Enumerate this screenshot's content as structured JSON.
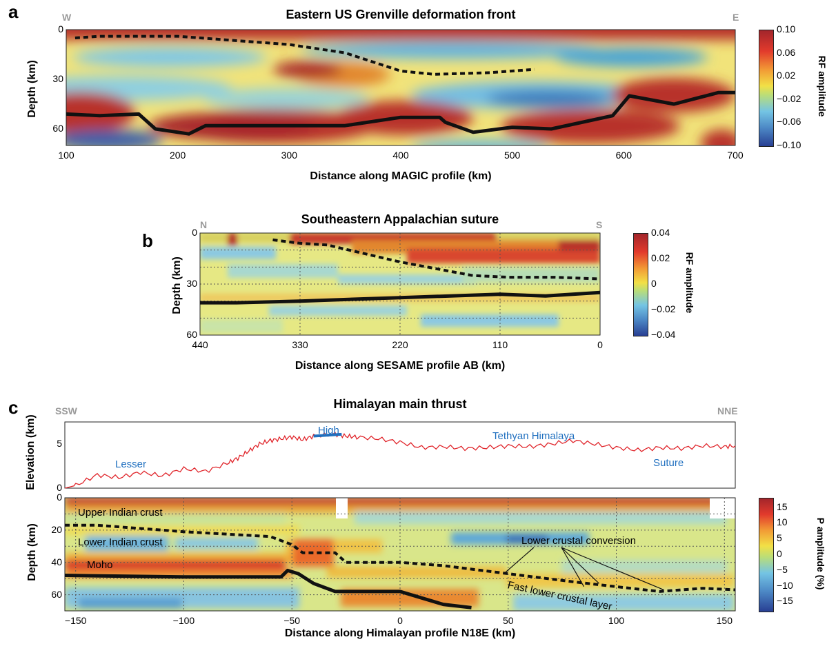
{
  "panels": [
    {
      "letter": "a",
      "title": "Eastern US Grenville deformation front",
      "dir_left": "W",
      "dir_right": "E",
      "xlabel": "Distance along MAGIC profile (km)",
      "ylabel": "Depth (km)",
      "colorbar_label": "RF amplitude",
      "colorbar_ticks": [
        "0.10",
        "0.06",
        "0.02",
        "−0.02",
        "−0.06",
        "−0.10"
      ]
    },
    {
      "letter": "b",
      "title": "Southeastern Appalachian suture",
      "dir_left": "N",
      "dir_right": "S",
      "xlabel": "Distance along SESAME profile AB (km)",
      "ylabel": "Depth (km)",
      "colorbar_label": "RF amplitude",
      "colorbar_ticks": [
        "0.04",
        "0.02",
        "0",
        "−0.02",
        "−0.04"
      ]
    },
    {
      "letter": "c",
      "title": "Himalayan main thrust",
      "dir_left": "SSW",
      "dir_right": "NNE",
      "xlabel": "Distance along Himalayan profile N18E (km)",
      "ylabel": "Depth (km)",
      "elev_ylabel": "Elevation (km)",
      "colorbar_label": "P amplitude (%)",
      "colorbar_ticks": [
        "15",
        "10",
        "5",
        "0",
        "−5",
        "−10",
        "−15"
      ],
      "elev_labels": {
        "lesser": "Lesser",
        "high": "High",
        "tethyan": "Tethyan Himalaya",
        "suture": "Suture"
      },
      "annotations": {
        "upper": "Upper Indian crust",
        "lower": "Lower  Indian crust",
        "moho": "Moho",
        "lcc": "Lower crustal conversion",
        "fast": "Fast lower crustal layer"
      }
    }
  ],
  "chart_data": [
    {
      "type": "heatmap",
      "title": "Eastern US Grenville deformation front",
      "xlabel": "Distance along MAGIC profile (km)",
      "ylabel": "Depth (km)",
      "xlim": [
        100,
        700
      ],
      "ylim": [
        0,
        70
      ],
      "y_inverted": true,
      "x_ticks": [
        100,
        200,
        300,
        400,
        500,
        600,
        700
      ],
      "y_ticks": [
        0,
        30,
        60
      ],
      "colorbar": {
        "label": "RF amplitude",
        "min": -0.1,
        "max": 0.1,
        "ticks": [
          0.1,
          0.06,
          0.02,
          -0.02,
          -0.06,
          -0.1
        ]
      },
      "lines": [
        {
          "style": "dashed",
          "x": [
            108,
            130,
            200,
            300,
            350,
            400,
            430,
            480,
            520
          ],
          "y": [
            5,
            4,
            4,
            9,
            14,
            25,
            27,
            26,
            24
          ]
        },
        {
          "style": "solid",
          "x": [
            100,
            130,
            165,
            180,
            210,
            225,
            300,
            350,
            400,
            435,
            440,
            465,
            500,
            535,
            590,
            605,
            645,
            685,
            700
          ],
          "y": [
            51,
            52,
            51,
            60,
            63,
            58,
            58,
            58,
            53,
            53,
            56,
            62,
            59,
            60,
            52,
            40,
            45,
            38,
            38
          ]
        }
      ]
    },
    {
      "type": "heatmap",
      "title": "Southeastern Appalachian suture",
      "xlabel": "Distance along SESAME profile AB (km)",
      "ylabel": "Depth (km)",
      "xlim": [
        440,
        0
      ],
      "ylim": [
        0,
        60
      ],
      "y_inverted": true,
      "x_ticks": [
        440,
        330,
        220,
        110,
        0
      ],
      "y_ticks": [
        0,
        30,
        60
      ],
      "colorbar": {
        "label": "RF amplitude",
        "min": -0.04,
        "max": 0.04,
        "ticks": [
          0.04,
          0.02,
          0,
          -0.02,
          -0.04
        ]
      },
      "lines": [
        {
          "style": "dashed",
          "x": [
            360,
            330,
            300,
            260,
            220,
            180,
            140,
            100,
            50,
            0
          ],
          "y": [
            4,
            6,
            7,
            12,
            17,
            21,
            25,
            26,
            26,
            27
          ]
        },
        {
          "style": "solid",
          "x": [
            440,
            400,
            330,
            220,
            110,
            60,
            0
          ],
          "y": [
            41,
            41,
            40,
            38,
            36,
            37,
            35
          ]
        }
      ]
    },
    {
      "type": "line",
      "title": "Himalayan main thrust",
      "ylabel": "Elevation (km)",
      "xlim": [
        -155,
        155
      ],
      "ylim": [
        0,
        7.5
      ],
      "y_ticks": [
        0,
        5
      ],
      "series": [
        {
          "x": [
            -155,
            -150,
            -140,
            -130,
            -120,
            -110,
            -100,
            -90,
            -80,
            -75,
            -70,
            -65,
            -60,
            -55,
            -50,
            -45,
            -40,
            -30,
            -25,
            -20,
            -10,
            0,
            10,
            20,
            30,
            40,
            50,
            60,
            70,
            80,
            90,
            100,
            110,
            120,
            130,
            140,
            150,
            155
          ],
          "y": [
            0,
            0.3,
            1.5,
            1.2,
            1.8,
            1.4,
            2.2,
            1.9,
            2.8,
            3.4,
            4.2,
            5.0,
            5.4,
            5.6,
            5.8,
            5.5,
            5.9,
            6.1,
            5.9,
            5.8,
            5.6,
            5.2,
            4.6,
            4.7,
            4.5,
            4.6,
            4.8,
            4.7,
            5.0,
            5.4,
            5.0,
            4.6,
            4.3,
            4.6,
            4.5,
            4.8,
            4.7,
            4.8
          ]
        }
      ],
      "highlight": {
        "x": [
          -40,
          -27
        ],
        "y": [
          5.9,
          6.1
        ]
      }
    },
    {
      "type": "heatmap",
      "title": "Himalayan main thrust",
      "xlabel": "Distance along Himalayan profile N18E (km)",
      "ylabel": "Depth (km)",
      "xlim": [
        -155,
        155
      ],
      "ylim": [
        0,
        70
      ],
      "y_inverted": true,
      "x_ticks": [
        -150,
        -100,
        -50,
        0,
        50,
        100,
        150
      ],
      "y_ticks": [
        0,
        20,
        40,
        60
      ],
      "colorbar": {
        "label": "P amplitude (%)",
        "min": -18,
        "max": 18,
        "ticks": [
          15,
          10,
          5,
          0,
          -5,
          -10,
          -15
        ]
      },
      "lines": [
        {
          "style": "dashed",
          "x": [
            -155,
            -140,
            -100,
            -60,
            -50,
            -45,
            -40,
            -30,
            -25,
            -20,
            0,
            20,
            50,
            80,
            100,
            120,
            140,
            155
          ],
          "y": [
            17,
            17,
            21,
            24,
            29,
            34,
            34,
            34,
            40,
            40,
            40,
            42,
            47,
            52,
            55,
            58,
            56,
            57
          ]
        },
        {
          "style": "solid",
          "x": [
            -155,
            -100,
            -55,
            -52,
            -47,
            -40,
            -30,
            0,
            20,
            33
          ],
          "y": [
            48,
            49,
            49,
            45,
            47,
            53,
            58,
            58,
            66,
            68
          ]
        }
      ]
    }
  ]
}
